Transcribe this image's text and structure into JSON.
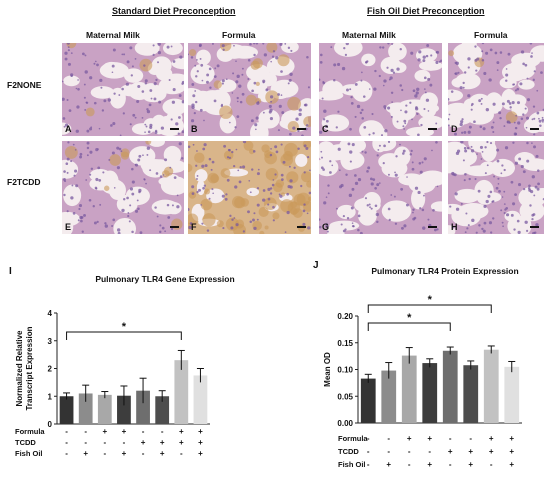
{
  "figure": {
    "groups": [
      "Standard Diet Preconception",
      "Fish Oil Diet Preconception"
    ],
    "columns": [
      "Maternal Milk",
      "Formula",
      "Maternal Milk",
      "Formula"
    ],
    "rows": [
      "F2NONE",
      "F2TCDD"
    ],
    "panels": [
      "A",
      "B",
      "C",
      "D",
      "E",
      "F",
      "G",
      "H"
    ],
    "tissue_colors": {
      "background": "#f4ecee",
      "tissue": "#c9a2c4",
      "nuclei": "#7a5aa0",
      "stain": "#c99a5a"
    },
    "stain_level": [
      0.05,
      0.25,
      0.0,
      0.05,
      0.15,
      0.85,
      0.0,
      0.0
    ]
  },
  "chart_data": [
    {
      "type": "bar",
      "letter": "I",
      "title": "Pulmonary TLR4 Gene Expression",
      "ylabel_lines": [
        "Normalized Relative",
        "Transcript Expression"
      ],
      "ylim": [
        0,
        4
      ],
      "yticks": [
        "0",
        "1",
        "2",
        "3",
        "4"
      ],
      "values": [
        1.0,
        1.1,
        1.05,
        1.02,
        1.2,
        1.0,
        2.3,
        1.75
      ],
      "errors": [
        0.12,
        0.3,
        0.12,
        0.35,
        0.45,
        0.2,
        0.35,
        0.25
      ],
      "colors": [
        "#333333",
        "#8c8c8c",
        "#a8a8a8",
        "#3d3d3d",
        "#6e6e6e",
        "#4d4d4d",
        "#c2c2c2",
        "#e0e0e0"
      ],
      "factor_rows": [
        {
          "label": "Formula",
          "marks": [
            "-",
            "-",
            "+",
            "+",
            "-",
            "-",
            "+",
            "+"
          ]
        },
        {
          "label": "TCDD",
          "marks": [
            "-",
            "-",
            "-",
            "-",
            "+",
            "+",
            "+",
            "+"
          ]
        },
        {
          "label": "Fish Oil",
          "marks": [
            "-",
            "+",
            "-",
            "+",
            "-",
            "+",
            "-",
            "+"
          ]
        }
      ],
      "significance": [
        {
          "from": 0,
          "to": 6,
          "label": "*"
        }
      ]
    },
    {
      "type": "bar",
      "letter": "J",
      "title": "Pulmonary TLR4 Protein Expression",
      "ylabel": "Mean OD",
      "ylim": [
        0,
        0.2
      ],
      "yticks": [
        "0.00",
        "0.05",
        "0.10",
        "0.15",
        "0.20"
      ],
      "values": [
        0.083,
        0.098,
        0.126,
        0.112,
        0.135,
        0.108,
        0.137,
        0.105
      ],
      "errors": [
        0.008,
        0.015,
        0.015,
        0.008,
        0.007,
        0.008,
        0.007,
        0.01
      ],
      "colors": [
        "#333333",
        "#8c8c8c",
        "#a8a8a8",
        "#3d3d3d",
        "#6e6e6e",
        "#4d4d4d",
        "#c2c2c2",
        "#e0e0e0"
      ],
      "factor_rows": [
        {
          "label": "Formula",
          "marks": [
            "-",
            "-",
            "+",
            "+",
            "-",
            "-",
            "+",
            "+"
          ]
        },
        {
          "label": "TCDD",
          "marks": [
            "-",
            "-",
            "-",
            "-",
            "+",
            "+",
            "+",
            "+"
          ]
        },
        {
          "label": "Fish Oil",
          "marks": [
            "-",
            "+",
            "-",
            "+",
            "-",
            "+",
            "-",
            "+"
          ]
        }
      ],
      "significance": [
        {
          "from": 0,
          "to": 4,
          "label": "*"
        },
        {
          "from": 0,
          "to": 6,
          "label": "*"
        }
      ]
    }
  ]
}
